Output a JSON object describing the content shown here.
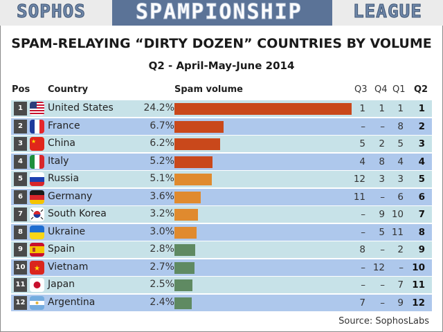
{
  "banner": {
    "left": "SOPHOS",
    "center": "SPAMPIONSHIP",
    "right": "LEAGUE"
  },
  "title": "SPAM-RELAYING “DIRTY DOZEN” COUNTRIES BY VOLUME",
  "subtitle": "Q2 - April-May-June 2014",
  "headers": {
    "pos": "Pos",
    "country": "Country",
    "volume": "Spam volume",
    "q3": "Q3",
    "q4": "Q4",
    "q1": "Q1",
    "q2": "Q2"
  },
  "colors": {
    "banner_blue": "#5b7397",
    "row_odd": "#c7e2e8",
    "row_even": "#aec8ec",
    "bar_top": "#c9481b",
    "bar_mid": "#e08a2e",
    "bar_low": "#5f8a62"
  },
  "rows": [
    {
      "pos": "1",
      "country": "United States",
      "pct": "24.2%",
      "q3": "1",
      "q4": "1",
      "q1": "1",
      "q2": "1",
      "flag": "us-flag-icon"
    },
    {
      "pos": "2",
      "country": "France",
      "pct": "6.7%",
      "q3": "–",
      "q4": "–",
      "q1": "8",
      "q2": "2",
      "flag": "france-flag-icon"
    },
    {
      "pos": "3",
      "country": "China",
      "pct": "6.2%",
      "q3": "5",
      "q4": "2",
      "q1": "5",
      "q2": "3",
      "flag": "china-flag-icon"
    },
    {
      "pos": "4",
      "country": "Italy",
      "pct": "5.2%",
      "q3": "4",
      "q4": "8",
      "q1": "4",
      "q2": "4",
      "flag": "italy-flag-icon"
    },
    {
      "pos": "5",
      "country": "Russia",
      "pct": "5.1%",
      "q3": "12",
      "q4": "3",
      "q1": "3",
      "q2": "5",
      "flag": "russia-flag-icon"
    },
    {
      "pos": "6",
      "country": "Germany",
      "pct": "3.6%",
      "q3": "11",
      "q4": "–",
      "q1": "6",
      "q2": "6",
      "flag": "germany-flag-icon"
    },
    {
      "pos": "7",
      "country": "South Korea",
      "pct": "3.2%",
      "q3": "–",
      "q4": "9",
      "q1": "10",
      "q2": "7",
      "flag": "south-korea-flag-icon"
    },
    {
      "pos": "8",
      "country": "Ukraine",
      "pct": "3.0%",
      "q3": "–",
      "q4": "5",
      "q1": "11",
      "q2": "8",
      "flag": "ukraine-flag-icon"
    },
    {
      "pos": "9",
      "country": "Spain",
      "pct": "2.8%",
      "q3": "8",
      "q4": "–",
      "q1": "2",
      "q2": "9",
      "flag": "spain-flag-icon"
    },
    {
      "pos": "10",
      "country": "Vietnam",
      "pct": "2.7%",
      "q3": "–",
      "q4": "12",
      "q1": "–",
      "q2": "10",
      "flag": "vietnam-flag-icon"
    },
    {
      "pos": "11",
      "country": "Japan",
      "pct": "2.5%",
      "q3": "–",
      "q4": "–",
      "q1": "7",
      "q2": "11",
      "flag": "japan-flag-icon"
    },
    {
      "pos": "12",
      "country": "Argentina",
      "pct": "2.4%",
      "q3": "7",
      "q4": "–",
      "q1": "9",
      "q2": "12",
      "flag": "argentina-flag-icon"
    }
  ],
  "source": "Source: SophosLabs",
  "chart_data": {
    "type": "bar",
    "orientation": "horizontal",
    "title": "SPAM-RELAYING “DIRTY DOZEN” COUNTRIES BY VOLUME",
    "subtitle": "Q2 - April-May-June 2014",
    "xlabel": "Spam volume",
    "ylabel": "Country",
    "categories": [
      "United States",
      "France",
      "China",
      "Italy",
      "Russia",
      "Germany",
      "South Korea",
      "Ukraine",
      "Spain",
      "Vietnam",
      "Japan",
      "Argentina"
    ],
    "values": [
      24.2,
      6.7,
      6.2,
      5.2,
      5.1,
      3.6,
      3.2,
      3.0,
      2.8,
      2.7,
      2.5,
      2.4
    ],
    "unit": "%",
    "previous_ranks": {
      "Q3": [
        1,
        null,
        5,
        4,
        12,
        11,
        null,
        null,
        8,
        null,
        null,
        7
      ],
      "Q4": [
        1,
        null,
        2,
        8,
        3,
        null,
        9,
        5,
        null,
        12,
        null,
        null
      ],
      "Q1": [
        1,
        8,
        5,
        4,
        3,
        6,
        10,
        11,
        2,
        null,
        7,
        9
      ],
      "Q2": [
        1,
        2,
        3,
        4,
        5,
        6,
        7,
        8,
        9,
        10,
        11,
        12
      ]
    },
    "source": "Source: SophosLabs",
    "grid": false,
    "legend": null
  }
}
